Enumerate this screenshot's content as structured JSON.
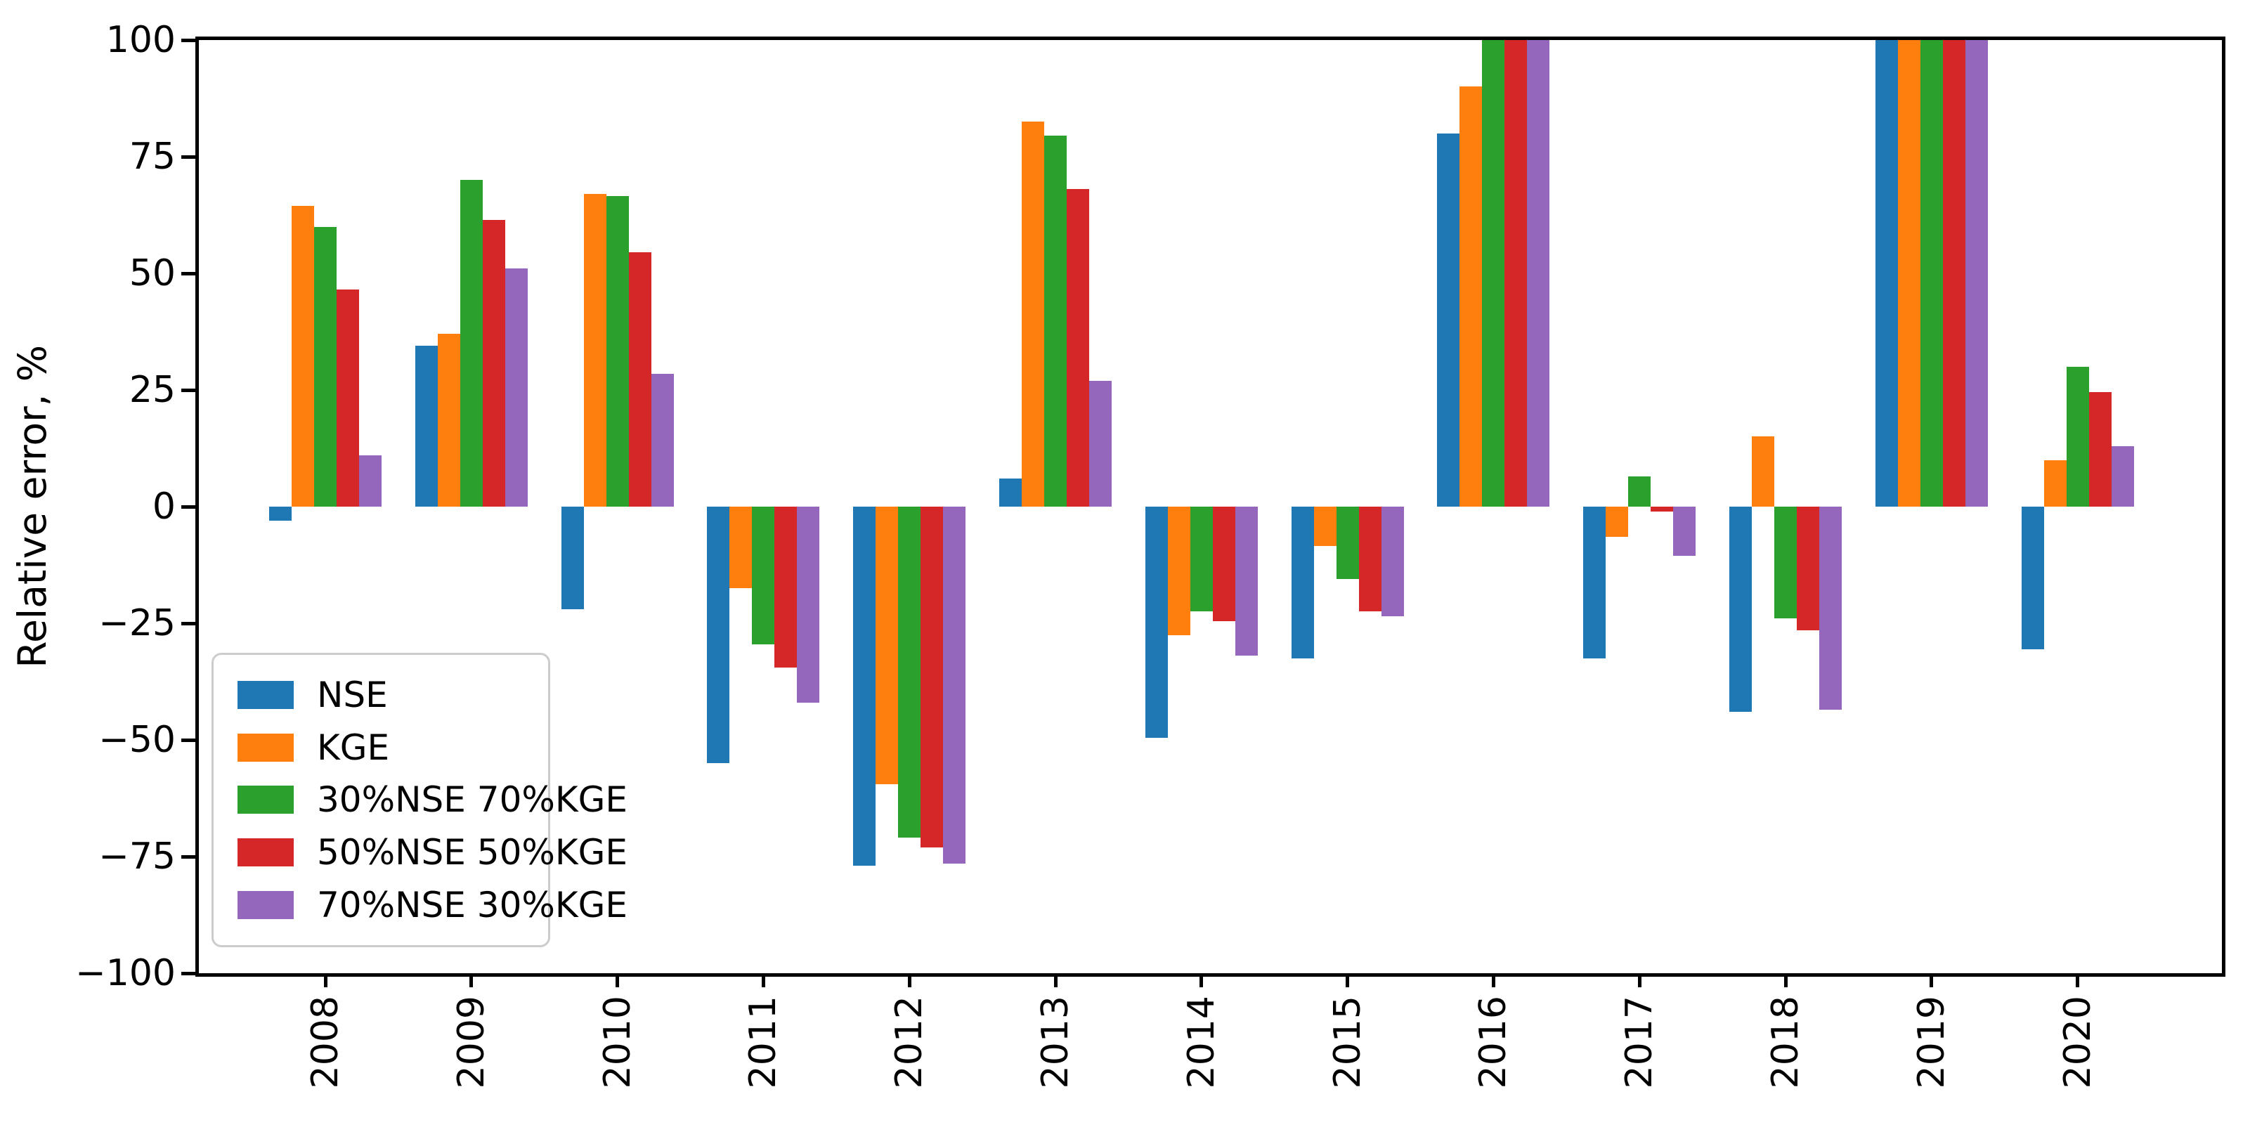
{
  "chart_data": {
    "type": "bar",
    "title": "",
    "xlabel": "",
    "ylabel": "Relative error, %",
    "ylim": [
      -100,
      100
    ],
    "yticks": [
      100,
      75,
      50,
      25,
      0,
      -25,
      -50,
      -75,
      -100
    ],
    "ytick_labels": [
      "100",
      "75",
      "50",
      "25",
      "0",
      "−25",
      "−50",
      "−75",
      "−100"
    ],
    "grid": false,
    "legend_position": "lower left",
    "categories": [
      "2008",
      "2009",
      "2010",
      "2011",
      "2012",
      "2013",
      "2014",
      "2015",
      "2016",
      "2017",
      "2018",
      "2019",
      "2020"
    ],
    "series": [
      {
        "name": "NSE",
        "color": "#1f77b4",
        "values": [
          -3,
          34.5,
          -22,
          -55,
          -77,
          6,
          -49.5,
          -32.5,
          80,
          -32.5,
          -44,
          100,
          -30.5
        ]
      },
      {
        "name": "KGE",
        "color": "#ff7f0e",
        "values": [
          64.5,
          37,
          67,
          -17.5,
          -59.5,
          82.5,
          -27.5,
          -8.5,
          90,
          -6.5,
          15,
          100,
          10
        ]
      },
      {
        "name": "30%NSE 70%KGE",
        "color": "#2ca02c",
        "values": [
          60,
          70,
          66.5,
          -29.5,
          -71,
          79.5,
          -22.5,
          -15.5,
          100,
          6.5,
          -24,
          100,
          30
        ]
      },
      {
        "name": "50%NSE 50%KGE",
        "color": "#d62728",
        "values": [
          46.5,
          61.5,
          54.5,
          -34.5,
          -73,
          68,
          -24.5,
          -22.5,
          100,
          -1,
          -26.5,
          100,
          24.5
        ]
      },
      {
        "name": "70%NSE 30%KGE",
        "color": "#9467bd",
        "values": [
          11,
          51,
          28.5,
          -42,
          -76.5,
          27,
          -32,
          -23.5,
          100,
          -10.5,
          -43.5,
          100,
          13
        ]
      }
    ]
  }
}
